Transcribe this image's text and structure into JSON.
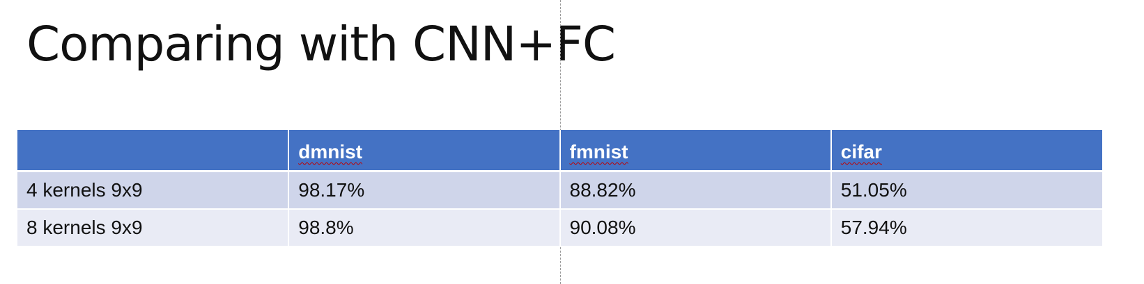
{
  "slide": {
    "title": "Comparing with CNN+FC"
  },
  "table": {
    "headers": [
      "",
      "dmnist",
      "fmnist",
      "cifar"
    ],
    "rows": [
      [
        "4 kernels 9x9",
        "98.17%",
        "88.82%",
        "51.05%"
      ],
      [
        "8 kernels 9x9",
        "98.8%",
        "90.08%",
        "57.94%"
      ]
    ]
  },
  "colors": {
    "header_fill": "#4472c4",
    "row_odd_fill": "#cfd5ea",
    "row_even_fill": "#e9ebf5",
    "spellcheck_underline": "#c00000"
  }
}
